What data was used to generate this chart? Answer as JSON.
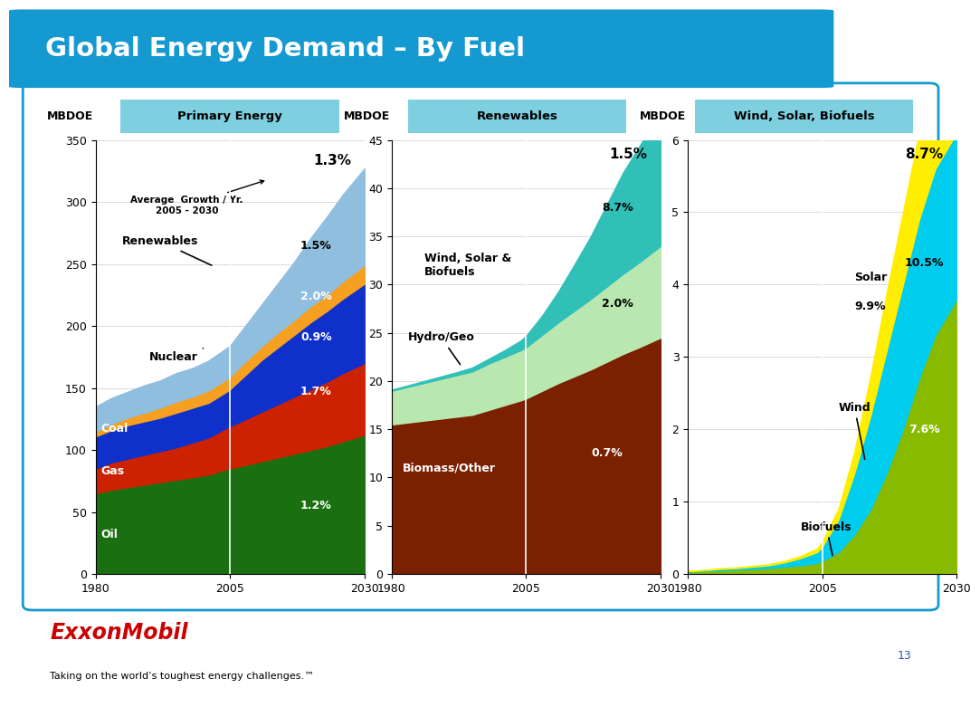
{
  "title": "Global Energy Demand – By Fuel",
  "header_bg": "#1499d0",
  "title_color": "white",
  "footer_logo": "ExxonMobil",
  "footer_tagline": "Taking on the world’s toughest energy challenges.™",
  "page_num": "13",
  "exon_red": "#cc0000",
  "subheader_bg": "#7ecfe0",
  "border_color": "#1499d0",
  "bg_color": "#ffffff",
  "grid_color": "#cccccc",
  "years": [
    1980,
    1983,
    1986,
    1989,
    1992,
    1995,
    1998,
    2001,
    2004,
    2005,
    2008,
    2011,
    2014,
    2017,
    2020,
    2023,
    2026,
    2030
  ],
  "chart1_title": "Primary Energy",
  "chart1_yticks": [
    0,
    50,
    100,
    150,
    200,
    250,
    300,
    350
  ],
  "chart1_total_rate": "1.3%",
  "chart1_layers": {
    "Oil": {
      "color": "#1a7010",
      "data": [
        65,
        68,
        70,
        72,
        74,
        76,
        78,
        80,
        84,
        85,
        88,
        91,
        94,
        97,
        100,
        103,
        107,
        112
      ]
    },
    "Gas": {
      "color": "#cc2200",
      "data": [
        20,
        22,
        23,
        24,
        25,
        26,
        28,
        30,
        33,
        34,
        37,
        40,
        43,
        46,
        49,
        52,
        55,
        58
      ]
    },
    "Coal": {
      "color": "#1030cc",
      "data": [
        26,
        26,
        27,
        27,
        27,
        28,
        28,
        28,
        29,
        30,
        36,
        42,
        46,
        50,
        54,
        57,
        60,
        64
      ]
    },
    "Nuclear": {
      "color": "#f5a020",
      "data": [
        4,
        5,
        6,
        7,
        8,
        9,
        9,
        10,
        10,
        10,
        11,
        11,
        12,
        12,
        13,
        13,
        14,
        15
      ]
    },
    "Renewables": {
      "color": "#90bede",
      "data": [
        20,
        21,
        21,
        22,
        22,
        23,
        23,
        24,
        25,
        25,
        29,
        34,
        40,
        47,
        55,
        63,
        70,
        78
      ]
    }
  },
  "chart1_rates": {
    "Oil": "1.2%",
    "Gas": "1.7%",
    "Coal": "0.9%",
    "Nuclear": "2.0%",
    "Renewables": "1.5%"
  },
  "chart2_title": "Renewables",
  "chart2_yticks": [
    0,
    5,
    10,
    15,
    20,
    25,
    30,
    35,
    40,
    45
  ],
  "chart2_total_rate": "1.5%",
  "chart2_layers": {
    "Biomass/Other": {
      "color": "#7b2000",
      "data": [
        15.5,
        15.7,
        15.9,
        16.1,
        16.3,
        16.5,
        17.0,
        17.5,
        18.0,
        18.2,
        19.0,
        19.8,
        20.5,
        21.2,
        22.0,
        22.8,
        23.5,
        24.5
      ]
    },
    "Hydro/Geo": {
      "color": "#b8e8b0",
      "data": [
        3.5,
        3.7,
        3.9,
        4.1,
        4.3,
        4.5,
        4.8,
        5.0,
        5.2,
        5.3,
        5.8,
        6.3,
        6.8,
        7.3,
        7.8,
        8.3,
        8.8,
        9.5
      ]
    },
    "Wind,Solar&Bio": {
      "color": "#30c0b8",
      "data": [
        0.1,
        0.15,
        0.2,
        0.25,
        0.3,
        0.4,
        0.5,
        0.7,
        1.0,
        1.2,
        2.0,
        3.2,
        4.8,
        6.5,
        8.5,
        10.5,
        12.0,
        14.0
      ]
    }
  },
  "chart2_rates": {
    "Biomass/Other": "0.7%",
    "Hydro/Geo": "2.0%",
    "Wind,Solar&Bio": "8.7%"
  },
  "chart3_title": "Wind, Solar, Biofuels",
  "chart3_yticks": [
    0,
    1,
    2,
    3,
    4,
    5,
    6
  ],
  "chart3_total_rate": "8.7%",
  "chart3_layers": {
    "Biofuels": {
      "color": "#88bb00",
      "data": [
        0.03,
        0.04,
        0.05,
        0.06,
        0.07,
        0.08,
        0.1,
        0.12,
        0.15,
        0.18,
        0.3,
        0.55,
        0.9,
        1.4,
        2.0,
        2.7,
        3.3,
        3.8
      ]
    },
    "Wind": {
      "color": "#00ccee",
      "data": [
        0.01,
        0.01,
        0.02,
        0.02,
        0.03,
        0.04,
        0.06,
        0.1,
        0.15,
        0.2,
        0.45,
        0.85,
        1.3,
        1.7,
        2.0,
        2.2,
        2.3,
        2.3
      ]
    },
    "Solar": {
      "color": "#ffee00",
      "data": [
        0.005,
        0.006,
        0.008,
        0.01,
        0.012,
        0.015,
        0.02,
        0.03,
        0.05,
        0.07,
        0.15,
        0.3,
        0.55,
        0.8,
        1.0,
        1.2,
        1.4,
        1.6
      ]
    }
  },
  "chart3_rates": {
    "Biofuels": "7.6%",
    "Wind": "10.5%",
    "Solar": "9.9%"
  }
}
